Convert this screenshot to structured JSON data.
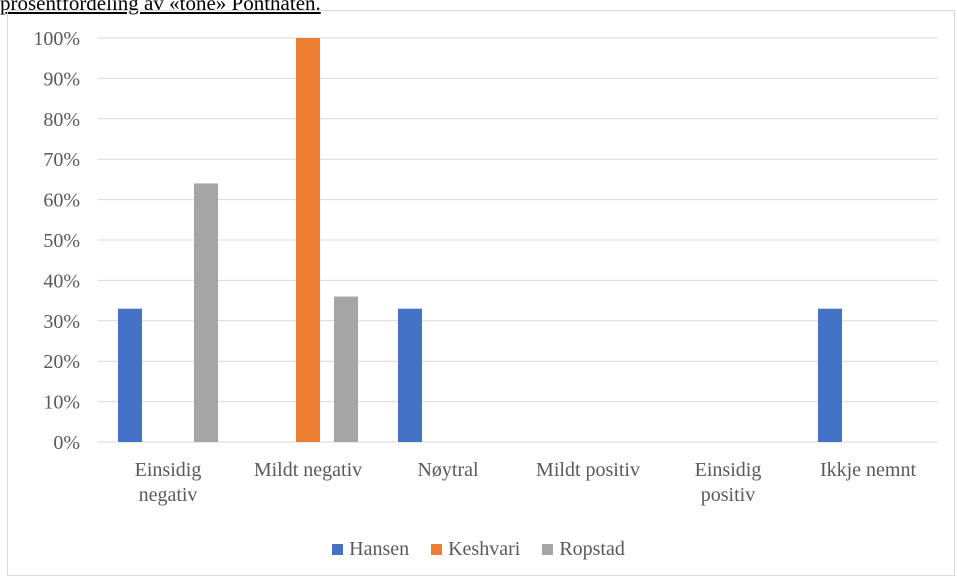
{
  "caption": "prosentfordeling av «tone» Ponthaten.",
  "chart_data": {
    "type": "bar",
    "categories": [
      [
        "Einsidig",
        "negativ"
      ],
      [
        "Mildt negativ"
      ],
      [
        "Nøytral"
      ],
      [
        "Mildt positiv"
      ],
      [
        "Einsidig",
        "positiv"
      ],
      [
        "Ikkje nemnt"
      ]
    ],
    "series": [
      {
        "name": "Hansen",
        "color": "#4472c4",
        "values": [
          33,
          0,
          33,
          0,
          0,
          33
        ]
      },
      {
        "name": "Keshvari",
        "color": "#ed7d31",
        "values": [
          0,
          100,
          0,
          0,
          0,
          0
        ]
      },
      {
        "name": "Ropstad",
        "color": "#a5a5a5",
        "values": [
          64,
          36,
          0,
          0,
          0,
          0
        ]
      }
    ],
    "ylim": [
      0,
      100
    ],
    "yticks": [
      "0%",
      "10%",
      "20%",
      "30%",
      "40%",
      "50%",
      "60%",
      "70%",
      "80%",
      "90%",
      "100%"
    ],
    "grid": true,
    "legend_position": "bottom"
  }
}
